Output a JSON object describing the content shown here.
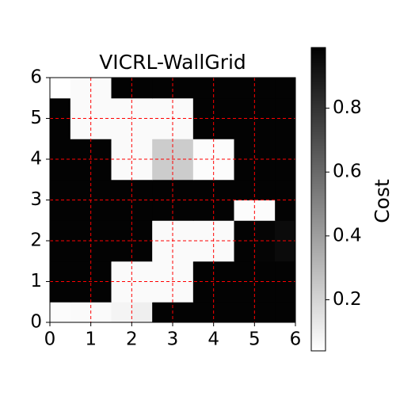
{
  "chart_data": {
    "type": "heatmap",
    "title": "VICRL-WallGrid",
    "xlim": [
      0,
      6
    ],
    "ylim": [
      0,
      6
    ],
    "xticks": [
      0,
      1,
      2,
      3,
      4,
      5,
      6
    ],
    "yticks": [
      0,
      1,
      2,
      3,
      4,
      5,
      6
    ],
    "grid": true,
    "grid_color": "#ff0000",
    "colorbar_label": "Cost",
    "clim": [
      0.04,
      0.99
    ],
    "colorbar_ticks": [
      0.2,
      0.4,
      0.6,
      0.8
    ],
    "z": [
      [
        0.05,
        0.06,
        0.06,
        0.08,
        0.1,
        0.98,
        0.98,
        0.98,
        0.98,
        0.98,
        0.98,
        0.98
      ],
      [
        0.98,
        0.98,
        0.98,
        0.06,
        0.06,
        0.06,
        0.06,
        0.98,
        0.98,
        0.98,
        0.98,
        0.98
      ],
      [
        0.98,
        0.98,
        0.98,
        0.06,
        0.06,
        0.06,
        0.06,
        0.98,
        0.98,
        0.98,
        0.98,
        0.98
      ],
      [
        0.98,
        0.98,
        0.98,
        0.98,
        0.98,
        0.06,
        0.06,
        0.06,
        0.06,
        0.98,
        0.97,
        0.95
      ],
      [
        0.98,
        0.98,
        0.98,
        0.98,
        0.98,
        0.06,
        0.06,
        0.06,
        0.06,
        0.98,
        0.97,
        0.95
      ],
      [
        0.98,
        0.98,
        0.98,
        0.98,
        0.98,
        0.98,
        0.98,
        0.98,
        0.98,
        0.05,
        0.05,
        0.98
      ],
      [
        0.98,
        0.98,
        0.98,
        0.98,
        0.98,
        0.98,
        0.98,
        0.98,
        0.98,
        0.98,
        0.98,
        0.98
      ],
      [
        0.98,
        0.98,
        0.98,
        0.06,
        0.06,
        0.23,
        0.23,
        0.05,
        0.05,
        0.98,
        0.98,
        0.98
      ],
      [
        0.98,
        0.98,
        0.98,
        0.06,
        0.06,
        0.23,
        0.23,
        0.05,
        0.05,
        0.98,
        0.98,
        0.98
      ],
      [
        0.98,
        0.06,
        0.06,
        0.06,
        0.06,
        0.06,
        0.06,
        0.98,
        0.98,
        0.98,
        0.98,
        0.98
      ],
      [
        0.98,
        0.06,
        0.06,
        0.06,
        0.06,
        0.06,
        0.06,
        0.98,
        0.98,
        0.98,
        0.98,
        0.98
      ],
      [
        0.04,
        0.06,
        0.06,
        0.98,
        0.98,
        0.98,
        0.98,
        0.98,
        0.98,
        0.98,
        0.98,
        0.98
      ]
    ]
  }
}
